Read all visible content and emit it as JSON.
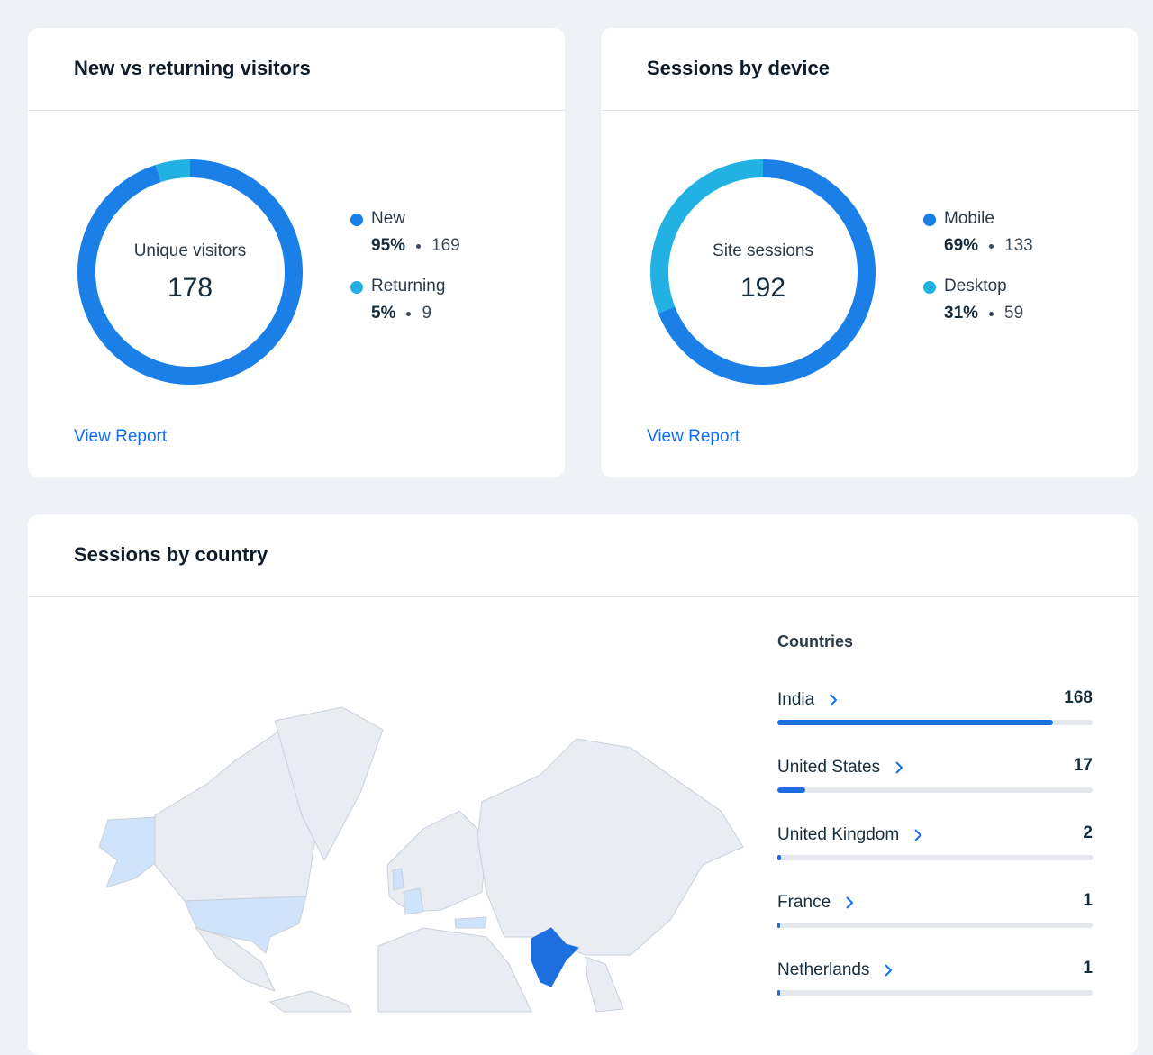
{
  "cards": [
    {
      "title": "New vs returning visitors",
      "center_label": "Unique visitors",
      "center_value": 178,
      "legend": [
        "New",
        "Returning"
      ],
      "colors": [
        "#1b7fe8",
        "#21b1e2"
      ],
      "values": [
        95,
        5
      ],
      "value_labels": [
        "95%",
        "5%"
      ],
      "counts": [
        169,
        9
      ],
      "link": "View Report"
    },
    {
      "title": "Sessions by device",
      "center_label": "Site sessions",
      "center_value": 192,
      "legend": [
        "Mobile",
        "Desktop"
      ],
      "colors": [
        "#1b7fe8",
        "#21b1e2"
      ],
      "values": [
        69,
        31
      ],
      "value_labels": [
        "69%",
        "31%"
      ],
      "counts": [
        133,
        59
      ],
      "link": "View Report"
    }
  ],
  "country_card": {
    "title": "Sessions by country",
    "list_title": "Countries",
    "countries": [
      "India",
      "United States",
      "United Kingdom",
      "France",
      "Netherlands"
    ],
    "sessions": [
      168,
      17,
      2,
      1,
      1
    ]
  }
}
